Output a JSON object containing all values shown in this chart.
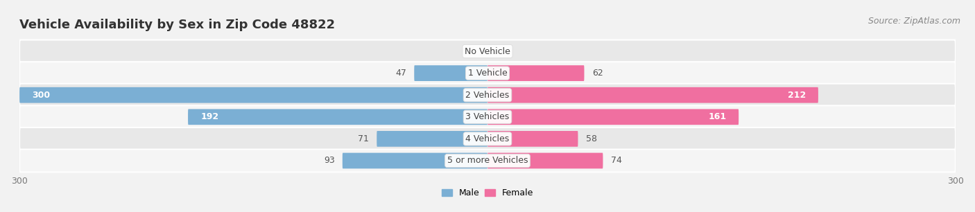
{
  "title": "Vehicle Availability by Sex in Zip Code 48822",
  "source": "Source: ZipAtlas.com",
  "categories": [
    "No Vehicle",
    "1 Vehicle",
    "2 Vehicles",
    "3 Vehicles",
    "4 Vehicles",
    "5 or more Vehicles"
  ],
  "male_values": [
    0,
    47,
    300,
    192,
    71,
    93
  ],
  "female_values": [
    0,
    62,
    212,
    161,
    58,
    74
  ],
  "male_color": "#7bafd4",
  "female_color": "#f06fa0",
  "male_label": "Male",
  "female_label": "Female",
  "xlim": [
    -300,
    300
  ],
  "bar_height": 0.72,
  "bg_color": "#f2f2f2",
  "row_colors_even": "#e8e8e8",
  "row_colors_odd": "#f5f5f5",
  "title_fontsize": 13,
  "source_fontsize": 9,
  "label_fontsize": 9,
  "value_fontsize": 9,
  "tick_fontsize": 9,
  "male_label_threshold": 150,
  "female_label_threshold": 150
}
